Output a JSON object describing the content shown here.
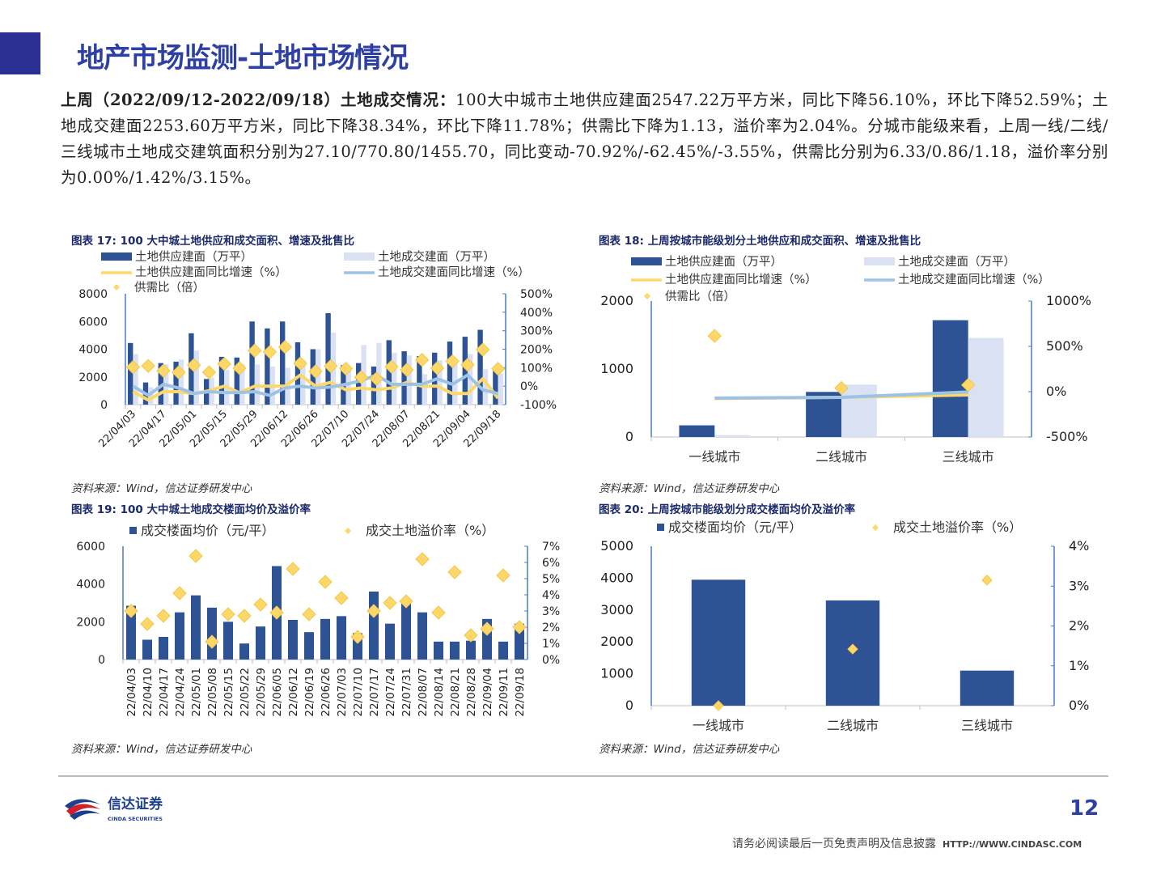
{
  "header": {
    "title": "地产市场监测-土地市场情况"
  },
  "summary": {
    "lead": "上周（2022/09/12-2022/09/18）土地成交情况：",
    "body": "100大中城市土地供应建面2547.22万平方米，同比下降56.10%，环比下降52.59%；土地成交建面2253.60万平方米，同比下降38.34%，环比下降11.78%；供需比下降为1.13，溢价率为2.04%。分城市能级来看，上周一线/二线/三线城市土地成交建筑面积分别为27.10/770.80/1455.70，同比变动-70.92%/-62.45%/-3.55%，供需比分别为6.33/0.86/1.18，溢价率分别为0.00%/1.42%/3.15%。"
  },
  "captions": {
    "c17": "图表 17:  100 大中城土地供应和成交面积、增速及批售比",
    "c18": "图表 18:  上周按城市能级划分土地供应和成交面积、增速及批售比",
    "c19": "图表 19:  100 大中城土地成交楼面均价及溢价率",
    "c20": "图表 20:  上周按城市能级划分成交楼面均价及溢价率"
  },
  "source": "资料来源：Wind，信达证券研发中心",
  "colors": {
    "supply": "#2e5395",
    "deal": "#dae1f2",
    "supply_yoy": "#fdd868",
    "deal_yoy": "#9cc3e5",
    "ratio": "#fdd868",
    "axis": "#4a7cc9",
    "title": "#2e40a4"
  },
  "chart_data": [
    {
      "type": "bar",
      "id": "c17",
      "categories": [
        "22/04/03",
        "22/04/10",
        "22/04/17",
        "22/04/24",
        "22/05/01",
        "22/05/08",
        "22/05/15",
        "22/05/22",
        "22/05/29",
        "22/06/05",
        "22/06/12",
        "22/06/19",
        "22/06/26",
        "22/07/03",
        "22/07/10",
        "22/07/17",
        "22/07/24",
        "22/07/31",
        "22/08/07",
        "22/08/14",
        "22/08/21",
        "22/08/28",
        "22/09/04",
        "22/09/11",
        "22/09/18"
      ],
      "tick_labels": [
        "22/04/03",
        "22/04/17",
        "22/05/01",
        "22/05/15",
        "22/05/29",
        "22/06/12",
        "22/06/26",
        "22/07/10",
        "22/07/24",
        "22/08/07",
        "22/08/21",
        "22/09/04",
        "22/09/18"
      ],
      "series": [
        {
          "name": "土地供应建面（万平）",
          "kind": "bar",
          "axis": "left",
          "values": [
            4450,
            1600,
            3000,
            3100,
            5150,
            1850,
            3450,
            3400,
            6000,
            5500,
            6000,
            4500,
            4000,
            6600,
            2850,
            3000,
            2750,
            4650,
            3850,
            3500,
            3750,
            4550,
            4900,
            5400,
            2550
          ]
        },
        {
          "name": "土地成交建面（万平）",
          "kind": "bar",
          "axis": "left",
          "values": [
            3650,
            1250,
            2900,
            3250,
            3900,
            1950,
            2500,
            2900,
            2900,
            2750,
            2650,
            3200,
            4000,
            5200,
            2500,
            4300,
            4450,
            3750,
            3550,
            2200,
            3200,
            3000,
            3650,
            2550,
            2250
          ]
        },
        {
          "name": "土地供应建面同比增速（%）",
          "kind": "line",
          "axis": "right",
          "values": [
            -30,
            -75,
            -30,
            -30,
            -40,
            -25,
            0,
            -35,
            0,
            0,
            0,
            60,
            0,
            20,
            -20,
            -10,
            -20,
            -10,
            20,
            0,
            0,
            -40,
            -40,
            40,
            -65
          ]
        },
        {
          "name": "土地成交建面同比增速（%）",
          "kind": "line",
          "axis": "right",
          "values": [
            0,
            -50,
            10,
            -10,
            -40,
            -30,
            -35,
            -35,
            -30,
            -50,
            -10,
            0,
            -10,
            -5,
            10,
            30,
            60,
            10,
            10,
            10,
            40,
            10,
            60,
            -20,
            -40
          ]
        },
        {
          "name": "供需比（倍）",
          "kind": "scatter",
          "axis": "hidden",
          "values": [
            1.22,
            1.28,
            1.03,
            0.95,
            1.32,
            0.95,
            1.38,
            1.17,
            2.07,
            2.0,
            2.26,
            1.41,
            1.0,
            1.27,
            1.14,
            0.7,
            0.62,
            1.24,
            1.08,
            1.59,
            1.17,
            1.52,
            1.34,
            2.12,
            1.13
          ]
        }
      ],
      "yleft": {
        "ticks": [
          "8000",
          "6000",
          "4000",
          "2000",
          "0"
        ],
        "lim": [
          0,
          8000
        ]
      },
      "yright": {
        "ticks": [
          "500%",
          "400%",
          "300%",
          "200%",
          "100%",
          "0%",
          "-100%"
        ],
        "lim": [
          -100,
          500
        ]
      }
    },
    {
      "type": "bar",
      "id": "c18",
      "categories": [
        "一线城市",
        "二线城市",
        "三线城市"
      ],
      "series": [
        {
          "name": "土地供应建面（万平）",
          "kind": "bar",
          "axis": "left",
          "values": [
            171.5,
            663,
            1718
          ]
        },
        {
          "name": "土地成交建面（万平）",
          "kind": "bar",
          "axis": "left",
          "values": [
            27.1,
            770.8,
            1455.7
          ]
        },
        {
          "name": "土地供应建面同比增速（%）",
          "kind": "line",
          "axis": "right",
          "values": [
            -75,
            -62,
            -36
          ]
        },
        {
          "name": "土地成交建面同比增速（%）",
          "kind": "line",
          "axis": "right",
          "values": [
            -70.92,
            -62.45,
            -3.55
          ]
        },
        {
          "name": "供需比（倍）",
          "kind": "scatter",
          "axis": "hidden",
          "values": [
            6.33,
            0.86,
            1.18
          ]
        }
      ],
      "yleft": {
        "ticks": [
          "2000",
          "1000",
          "0"
        ],
        "lim": [
          0,
          2000
        ]
      },
      "yright": {
        "ticks": [
          "1000%",
          "500%",
          "0%",
          "-500%"
        ],
        "lim": [
          -500,
          1000
        ]
      }
    },
    {
      "type": "bar",
      "id": "c19",
      "categories": [
        "22/04/03",
        "22/04/10",
        "22/04/17",
        "22/04/24",
        "22/05/01",
        "22/05/08",
        "22/05/15",
        "22/05/22",
        "22/05/29",
        "22/06/05",
        "22/06/12",
        "22/06/19",
        "22/06/26",
        "22/07/03",
        "22/07/10",
        "22/07/17",
        "22/07/24",
        "22/07/31",
        "22/08/07",
        "22/08/14",
        "22/08/21",
        "22/08/28",
        "22/09/04",
        "22/09/11",
        "22/09/18"
      ],
      "series": [
        {
          "name": "成交楼面均价（元/平）",
          "kind": "bar",
          "axis": "left",
          "values": [
            2850,
            1050,
            1200,
            2500,
            3400,
            2750,
            2000,
            850,
            1750,
            4950,
            2100,
            1450,
            2150,
            2300,
            1400,
            3600,
            1900,
            3150,
            2500,
            950,
            950,
            1000,
            2150,
            950,
            1900
          ]
        },
        {
          "name": "成交土地溢价率（%）",
          "kind": "scatter",
          "axis": "right",
          "values": [
            3.0,
            2.2,
            2.7,
            4.1,
            6.4,
            1.1,
            2.8,
            2.7,
            3.4,
            2.9,
            5.6,
            2.8,
            4.8,
            3.8,
            1.4,
            3.0,
            3.5,
            3.6,
            6.2,
            2.9,
            5.4,
            1.5,
            1.9,
            5.2,
            2.0
          ]
        }
      ],
      "yleft": {
        "ticks": [
          "6000",
          "4000",
          "2000",
          "0"
        ],
        "lim": [
          0,
          6000
        ]
      },
      "yright": {
        "ticks": [
          "7%",
          "6%",
          "5%",
          "4%",
          "3%",
          "2%",
          "1%",
          "0%"
        ],
        "lim": [
          0,
          7
        ]
      }
    },
    {
      "type": "bar",
      "id": "c20",
      "categories": [
        "一线城市",
        "二线城市",
        "三线城市"
      ],
      "series": [
        {
          "name": "成交楼面均价（元/平）",
          "kind": "bar",
          "axis": "left",
          "values": [
            3950,
            3300,
            1100
          ]
        },
        {
          "name": "成交土地溢价率（%）",
          "kind": "scatter",
          "axis": "right",
          "values": [
            0.0,
            1.42,
            3.15
          ]
        }
      ],
      "yleft": {
        "ticks": [
          "5000",
          "4000",
          "3000",
          "2000",
          "1000",
          "0"
        ],
        "lim": [
          0,
          5000
        ]
      },
      "yright": {
        "ticks": [
          "4%",
          "3%",
          "2%",
          "1%",
          "0%"
        ],
        "lim": [
          0,
          4
        ]
      }
    }
  ],
  "footer": {
    "page": "12",
    "disclaimer": "请务必阅读最后一页免责声明及信息披露",
    "url": "HTTP://WWW.CINDASC.COM",
    "logo_text": "信达证券",
    "logo_sub": "CINDA SECURITIES"
  }
}
